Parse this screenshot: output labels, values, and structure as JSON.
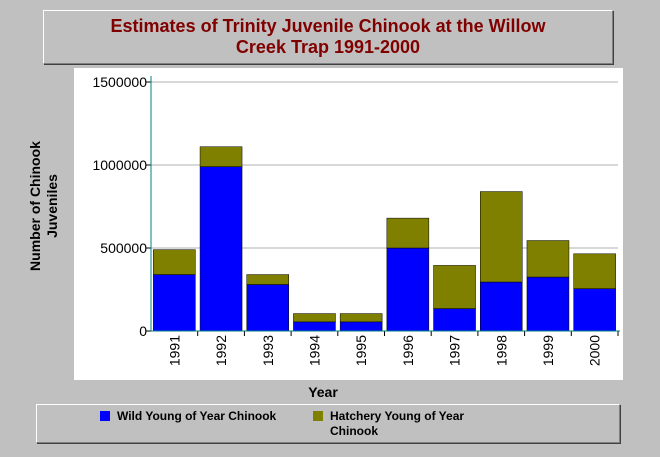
{
  "chart_data": {
    "type": "bar",
    "stacked": true,
    "title": "Estimates of Trinity Juvenile Chinook at the Willow Creek Trap 1991-2000",
    "xlabel": "Year",
    "ylabel": "Number of Chinook Juveniles",
    "categories": [
      "1991",
      "1992",
      "1993",
      "1994",
      "1995",
      "1996",
      "1997",
      "1998",
      "1999",
      "2000"
    ],
    "series": [
      {
        "name": "Wild Young of Year Chinook",
        "color": "#0000ff",
        "values": [
          340000,
          990000,
          280000,
          55000,
          55000,
          500000,
          135000,
          295000,
          325000,
          255000
        ]
      },
      {
        "name": "Hatchery Young of Year Chinook",
        "color": "#808000",
        "values": [
          150000,
          120000,
          60000,
          50000,
          50000,
          180000,
          260000,
          545000,
          220000,
          210000
        ]
      }
    ],
    "yticks": [
      "0",
      "500000",
      "1000000",
      "1500000"
    ],
    "ylim": [
      0,
      1500000
    ],
    "grid": true,
    "legend_position": "bottom"
  }
}
